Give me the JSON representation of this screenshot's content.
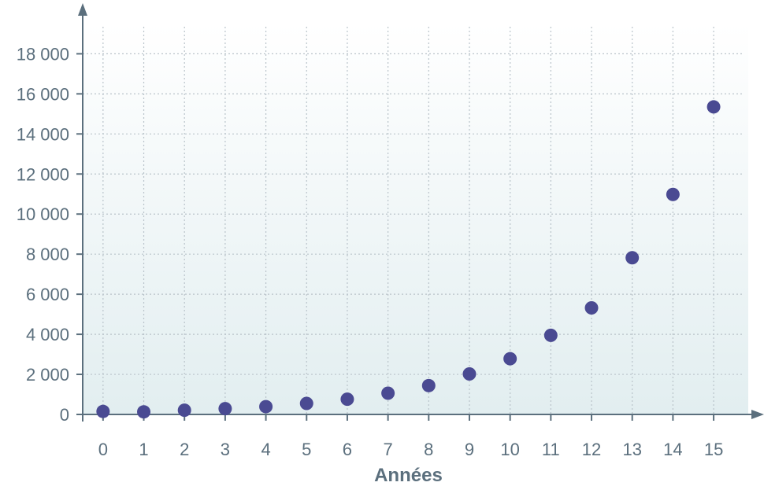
{
  "chart_data": {
    "type": "scatter",
    "title": "",
    "xlabel": "Années",
    "ylabel": "",
    "x": [
      0,
      1,
      2,
      3,
      4,
      5,
      6,
      7,
      8,
      9,
      10,
      11,
      12,
      13,
      14,
      15
    ],
    "series": [
      {
        "values": [
          150,
          130,
          210,
          290,
          390,
          550,
          760,
          1060,
          1440,
          2020,
          2780,
          3950,
          5320,
          7820,
          10980,
          15350
        ],
        "color": "#4a4a92"
      }
    ],
    "xlim": [
      -0.5,
      15.85
    ],
    "ylim": [
      0,
      19900
    ],
    "xticks": [
      0,
      1,
      2,
      3,
      4,
      5,
      6,
      7,
      8,
      9,
      10,
      11,
      12,
      13,
      14,
      15
    ],
    "xtick_labels": [
      "0",
      "1",
      "2",
      "3",
      "4",
      "5",
      "6",
      "7",
      "8",
      "9",
      "10",
      "11",
      "12",
      "13",
      "14",
      "15"
    ],
    "yticks": [
      0,
      2000,
      4000,
      6000,
      8000,
      10000,
      12000,
      14000,
      16000,
      18000
    ],
    "ytick_labels": [
      "0",
      "2 000",
      "4 000",
      "6 000",
      "8 000",
      "10 000",
      "12 000",
      "14 000",
      "16 000",
      "18 000"
    ],
    "grid": true,
    "axis_color": "#5b6f7d",
    "grid_color": "#b9c3ca",
    "background_gradient": [
      "#ffffff",
      "#e2eef0"
    ]
  }
}
